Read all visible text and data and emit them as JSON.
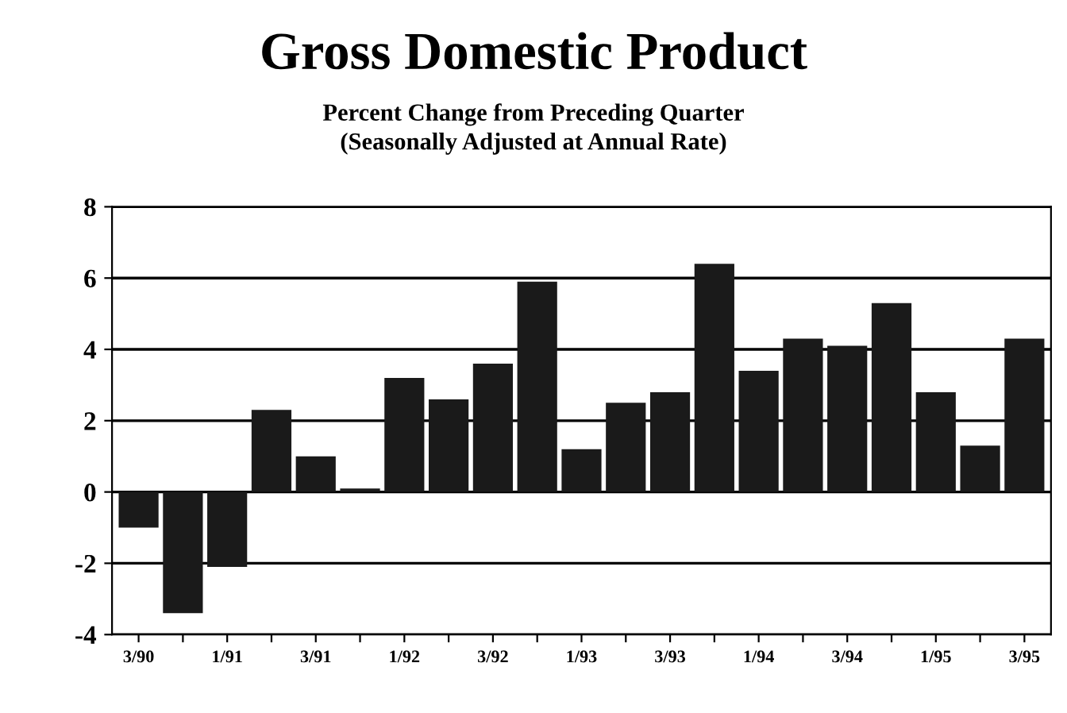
{
  "chart_data": {
    "type": "bar",
    "title": "Gross Domestic Product",
    "subtitle": "Percent Change from Preceding Quarter\n(Seasonally Adjusted at Annual Rate)",
    "categories": [
      "3/90",
      null,
      "1/91",
      null,
      "3/91",
      null,
      "1/92",
      null,
      "3/92",
      null,
      "1/93",
      null,
      "3/93",
      null,
      "1/94",
      null,
      "3/94",
      null,
      "1/95",
      null,
      "3/95"
    ],
    "values": [
      -1.0,
      -3.4,
      -2.1,
      2.3,
      1.0,
      0.1,
      3.2,
      2.6,
      3.6,
      5.9,
      1.2,
      2.5,
      2.8,
      6.4,
      3.4,
      4.3,
      4.1,
      5.3,
      2.8,
      1.3,
      4.3
    ],
    "color": "#1a1a1a",
    "ylim": [
      -4,
      8
    ],
    "yticks": [
      -4,
      -2,
      0,
      2,
      4,
      6,
      8
    ],
    "grid": "y"
  }
}
